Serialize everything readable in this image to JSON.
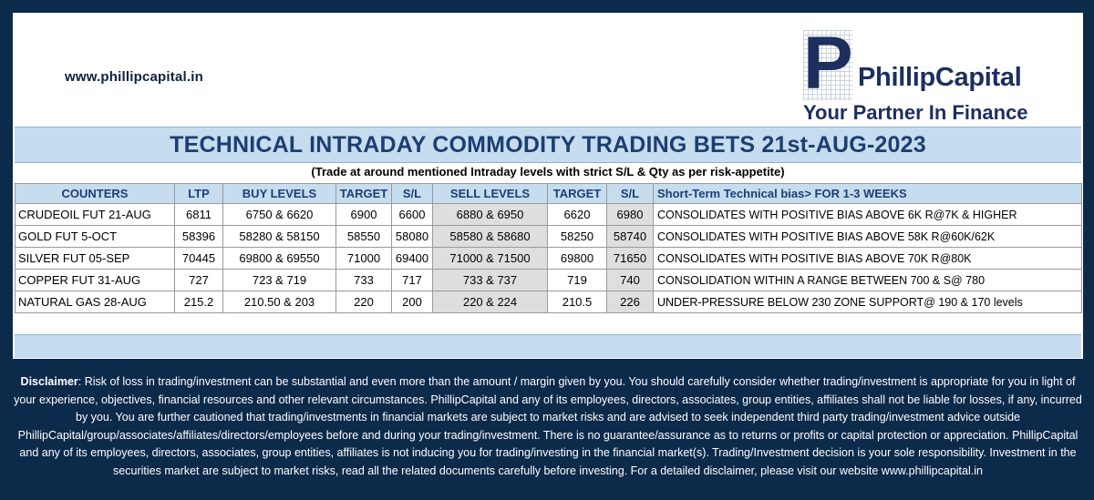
{
  "header": {
    "website": "www.phillipcapital.in",
    "logo_letter": "P",
    "logo_name": "PhillipCapital",
    "logo_tagline": "Your Partner In Finance"
  },
  "title": "TECHNICAL INTRADAY COMMODITY TRADING BETS 21st-AUG-2023",
  "subtitle": "(Trade at around mentioned Intraday levels with strict S/L & Qty as per risk-appetite)",
  "table": {
    "columns": [
      "COUNTERS",
      "LTP",
      "BUY LEVELS",
      "TARGET",
      "S/L",
      "SELL LEVELS",
      "TARGET",
      "S/L",
      "Short-Term Technical bias> FOR 1-3 WEEKS"
    ],
    "rows": [
      [
        "CRUDEOIL FUT 21-AUG",
        "6811",
        "6750 & 6620",
        "6900",
        "6600",
        "6880 & 6950",
        "6620",
        "6980",
        "CONSOLIDATES WITH POSITIVE BIAS ABOVE 6K R@7K & HIGHER"
      ],
      [
        "GOLD FUT 5-OCT",
        "58396",
        "58280 & 58150",
        "58550",
        "58080",
        "58580 & 58680",
        "58250",
        "58740",
        "CONSOLIDATES WITH POSITIVE BIAS ABOVE 58K R@60K/62K"
      ],
      [
        "SILVER FUT 05-SEP",
        "70445",
        "69800 & 69550",
        "71000",
        "69400",
        "71000 & 71500",
        "69800",
        "71650",
        "CONSOLIDATES WITH POSITIVE BIAS ABOVE 70K R@80K"
      ],
      [
        "COPPER FUT 31-AUG",
        "727",
        "723 & 719",
        "733",
        "717",
        "733 & 737",
        "719",
        "740",
        "CONSOLIDATION WITHIN A RANGE BETWEEN 700 & S@ 780"
      ],
      [
        "NATURAL GAS 28-AUG",
        "215.2",
        "210.50 & 203",
        "220",
        "200",
        "220 & 224",
        "210.5",
        "226",
        "UNDER-PRESSURE BELOW 230 ZONE SUPPORT@ 190 & 170 levels"
      ]
    ]
  },
  "disclaimer": {
    "label": "Disclaimer",
    "text": ": Risk of loss in trading/investment can be substantial and even more than the amount / margin given by you. You should carefully consider whether trading/investment is appropriate for you in light of your experience, objectives, financial resources and other relevant circumstances. PhillipCapital and any of its employees, directors, associates, group entities, affiliates shall not be liable for losses, if any, incurred by you. You are further cautioned that trading/investments in financial markets are subject to market risks and are advised to seek independent third party trading/investment advice outside PhillipCapital/group/associates/affiliates/directors/employees before and during your trading/investment. There is no guarantee/assurance as to returns or profits or capital protection or appreciation. PhillipCapital and any of its employees, directors, associates, group entities, affiliates is not inducing you for trading/investing in the financial market(s). Trading/Investment decision is your sole responsibility. Investment in the securities market are subject to market risks, read all the related documents carefully before investing. For a detailed disclaimer, please visit our website www.phillipcapital.in"
  },
  "colors": {
    "background": "#0c2a4a",
    "header_band": "#c6dcef",
    "title_text": "#1c3e72",
    "brand": "#1c2f5e",
    "shaded_cell": "#dedede"
  }
}
